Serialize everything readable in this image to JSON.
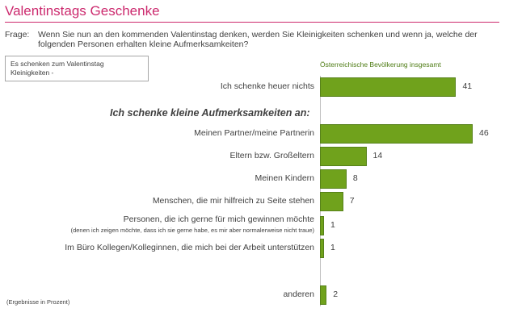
{
  "title": "Valentinstags Geschenke",
  "frage": {
    "label": "Frage:",
    "text": "Wenn Sie nun an den kommenden Valentinstag denken, werden Sie Kleinigkeiten schenken und wenn ja, welche der folgenden Personen erhalten kleine Aufmerksamkeiten?"
  },
  "legend_box": "Es schenken zum Valentinstag Kleinigkeiten -",
  "column_header": "Österreichische Bevölkerung insgesamt",
  "section_heading": "Ich schenke kleine Aufmerksamkeiten an:",
  "footnote": "(Ergebnisse in Prozent)",
  "colors": {
    "title": "#cc2a6e",
    "bar": "#70a21c",
    "header": "#4e7c14"
  },
  "chart_data": {
    "type": "bar",
    "orientation": "horizontal",
    "series": [
      {
        "name": "Österreichische Bevölkerung insgesamt",
        "values": [
          41,
          46,
          14,
          8,
          7,
          1,
          1,
          2
        ]
      }
    ],
    "categories": [
      "Ich schenke heuer nichts",
      "Meinen Partner/meine Partnerin",
      "Eltern bzw. Großeltern",
      "Meinen Kindern",
      "Menschen, die mir hilfreich zu Seite stehen",
      "Personen, die ich gerne für mich gewinnen möchte",
      "Im Büro Kollegen/Kolleginnen, die mich bei der Arbeit unterstützen",
      "anderen"
    ],
    "sublabels": [
      "",
      "",
      "",
      "",
      "",
      "(denen ich zeigen möchte, dass ich sie gerne habe, es mir aber normalerweise nicht traue)",
      "",
      ""
    ],
    "value_labels": [
      "41",
      "46",
      "14",
      "8",
      "7",
      "1",
      "1",
      "2"
    ],
    "unit": "Prozent",
    "xlim": [
      0,
      46
    ]
  }
}
